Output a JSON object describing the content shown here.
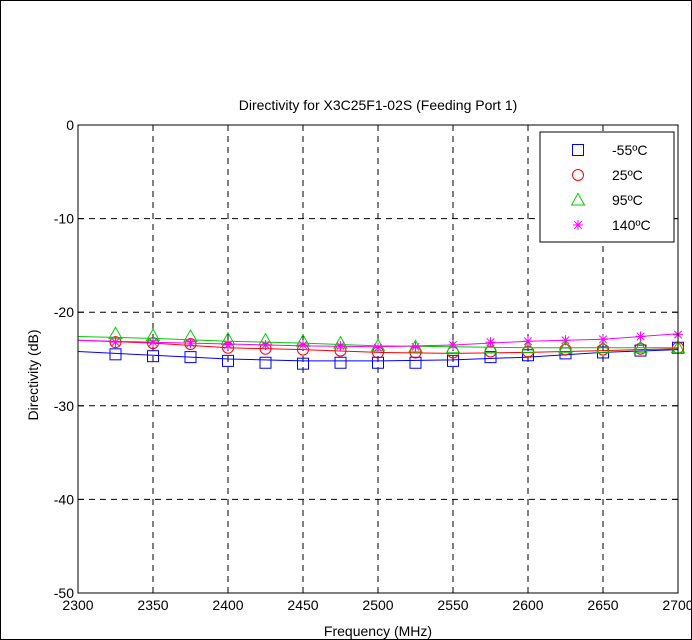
{
  "chart_data": {
    "type": "line",
    "title": "Directivity for X3C25F1-02S (Feeding Port 1)",
    "xlabel": "Frequency (MHz)",
    "ylabel": "Directivity (dB)",
    "xlim": [
      2300,
      2700
    ],
    "ylim": [
      -50,
      0
    ],
    "xticks": [
      "2300",
      "2350",
      "2400",
      "2450",
      "2500",
      "2550",
      "2600",
      "2650",
      "2700"
    ],
    "yticks": [
      "0",
      "-10",
      "-20",
      "-30",
      "-40",
      "-50"
    ],
    "grid": true,
    "legend_position": "top-right",
    "series": [
      {
        "name": "-55ºC",
        "color": "#0000ff",
        "marker": "square",
        "line_x": [
          2300,
          2350,
          2400,
          2450,
          2500,
          2550,
          2600,
          2650,
          2700
        ],
        "line_y": [
          -24.2,
          -24.6,
          -25.0,
          -25.2,
          -25.2,
          -25.1,
          -24.8,
          -24.3,
          -24.0
        ],
        "marker_x": [
          2325,
          2350,
          2375,
          2400,
          2425,
          2450,
          2475,
          2500,
          2525,
          2550,
          2575,
          2600,
          2625,
          2650,
          2675,
          2700
        ],
        "marker_y": [
          -24.5,
          -24.7,
          -24.8,
          -25.2,
          -25.4,
          -25.5,
          -25.4,
          -25.4,
          -25.4,
          -25.2,
          -24.8,
          -24.6,
          -24.4,
          -24.3,
          -24.1,
          -23.8
        ]
      },
      {
        "name": "25ºC",
        "color": "#ff0000",
        "marker": "circle",
        "line_x": [
          2300,
          2350,
          2400,
          2450,
          2500,
          2550,
          2600,
          2650,
          2700
        ],
        "line_y": [
          -23.0,
          -23.3,
          -23.8,
          -24.0,
          -24.3,
          -24.4,
          -24.3,
          -24.1,
          -23.9
        ],
        "marker_x": [
          2325,
          2350,
          2375,
          2400,
          2425,
          2450,
          2475,
          2500,
          2525,
          2550,
          2575,
          2600,
          2625,
          2650,
          2675,
          2700
        ],
        "marker_y": [
          -23.2,
          -23.3,
          -23.4,
          -23.8,
          -23.9,
          -24.0,
          -24.1,
          -24.3,
          -24.3,
          -24.3,
          -24.2,
          -24.2,
          -24.0,
          -24.0,
          -23.9,
          -23.8
        ]
      },
      {
        "name": "95ºC",
        "color": "#00cc00",
        "marker": "triangle",
        "line_x": [
          2300,
          2350,
          2400,
          2450,
          2500,
          2550,
          2600,
          2650,
          2700
        ],
        "line_y": [
          -22.6,
          -22.8,
          -23.1,
          -23.3,
          -23.6,
          -23.7,
          -23.8,
          -23.8,
          -23.8
        ],
        "marker_x": [
          2325,
          2350,
          2375,
          2400,
          2425,
          2450,
          2475,
          2500,
          2525,
          2550,
          2575,
          2600,
          2625,
          2650,
          2675,
          2700
        ],
        "marker_y": [
          -22.3,
          -22.5,
          -22.6,
          -22.9,
          -23.0,
          -23.1,
          -23.3,
          -23.6,
          -23.7,
          -23.8,
          -23.8,
          -23.8,
          -23.8,
          -23.8,
          -23.8,
          -23.8
        ]
      },
      {
        "name": "140ºC",
        "color": "#ff00ff",
        "marker": "star",
        "line_x": [
          2300,
          2350,
          2400,
          2450,
          2500,
          2550,
          2600,
          2650,
          2700
        ],
        "line_y": [
          -23.0,
          -23.2,
          -23.4,
          -23.6,
          -23.7,
          -23.5,
          -23.1,
          -22.9,
          -22.3
        ],
        "marker_x": [
          2325,
          2350,
          2375,
          2400,
          2425,
          2450,
          2475,
          2500,
          2525,
          2550,
          2575,
          2600,
          2625,
          2650,
          2675,
          2700
        ],
        "marker_y": [
          -23.2,
          -23.2,
          -23.3,
          -23.5,
          -23.5,
          -23.5,
          -23.6,
          -23.8,
          -23.7,
          -23.5,
          -23.2,
          -23.1,
          -23.0,
          -22.9,
          -22.6,
          -22.4
        ]
      }
    ]
  }
}
